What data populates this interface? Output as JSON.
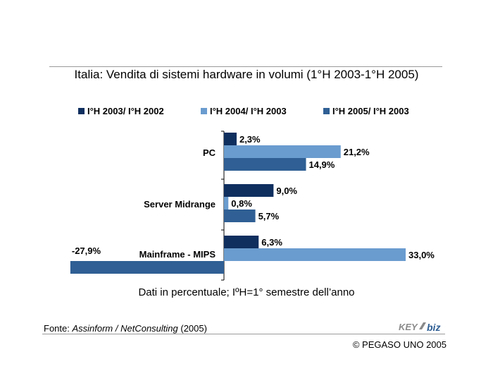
{
  "footer": {
    "source_prefix": "Fonte: ",
    "source_italic": "Assinform / NetConsulting",
    "source_suffix": " (2005)",
    "copyright": "© PEGASO UNO 2005",
    "logo_text": "KEY4biz"
  },
  "colors": {
    "series1": "#0f2f5f",
    "series2": "#6a9ccf",
    "series3": "#2f5f94",
    "rule": "#9a9a9a",
    "axis": "#000000"
  },
  "chart_data": {
    "type": "bar",
    "orientation": "horizontal",
    "title": "Italia: Vendita di sistemi hardware in volumi (1°H 2003-1°H 2005)",
    "footnote": "Dati in percentuale; IºH=1° semestre dell’anno",
    "categories": [
      "PC",
      "Server Midrange",
      "Mainframe - MIPS"
    ],
    "series": [
      {
        "name": "I°H 2003/ I°H 2002",
        "values": [
          2.3,
          9.0,
          6.3
        ],
        "labels": [
          "2,3%",
          "9,0%",
          "6,3%"
        ]
      },
      {
        "name": "I°H 2004/ I°H 2003",
        "values": [
          21.2,
          0.8,
          33.0
        ],
        "labels": [
          "21,2%",
          "0,8%",
          "33,0%"
        ]
      },
      {
        "name": "I°H 2005/ I°H 2003",
        "values": [
          14.9,
          5.7,
          -27.9
        ],
        "labels": [
          "14,9%",
          "5,7%",
          "-27,9%"
        ]
      }
    ],
    "xlim": [
      -28,
      33
    ],
    "legend_position": "top",
    "grid": false
  }
}
